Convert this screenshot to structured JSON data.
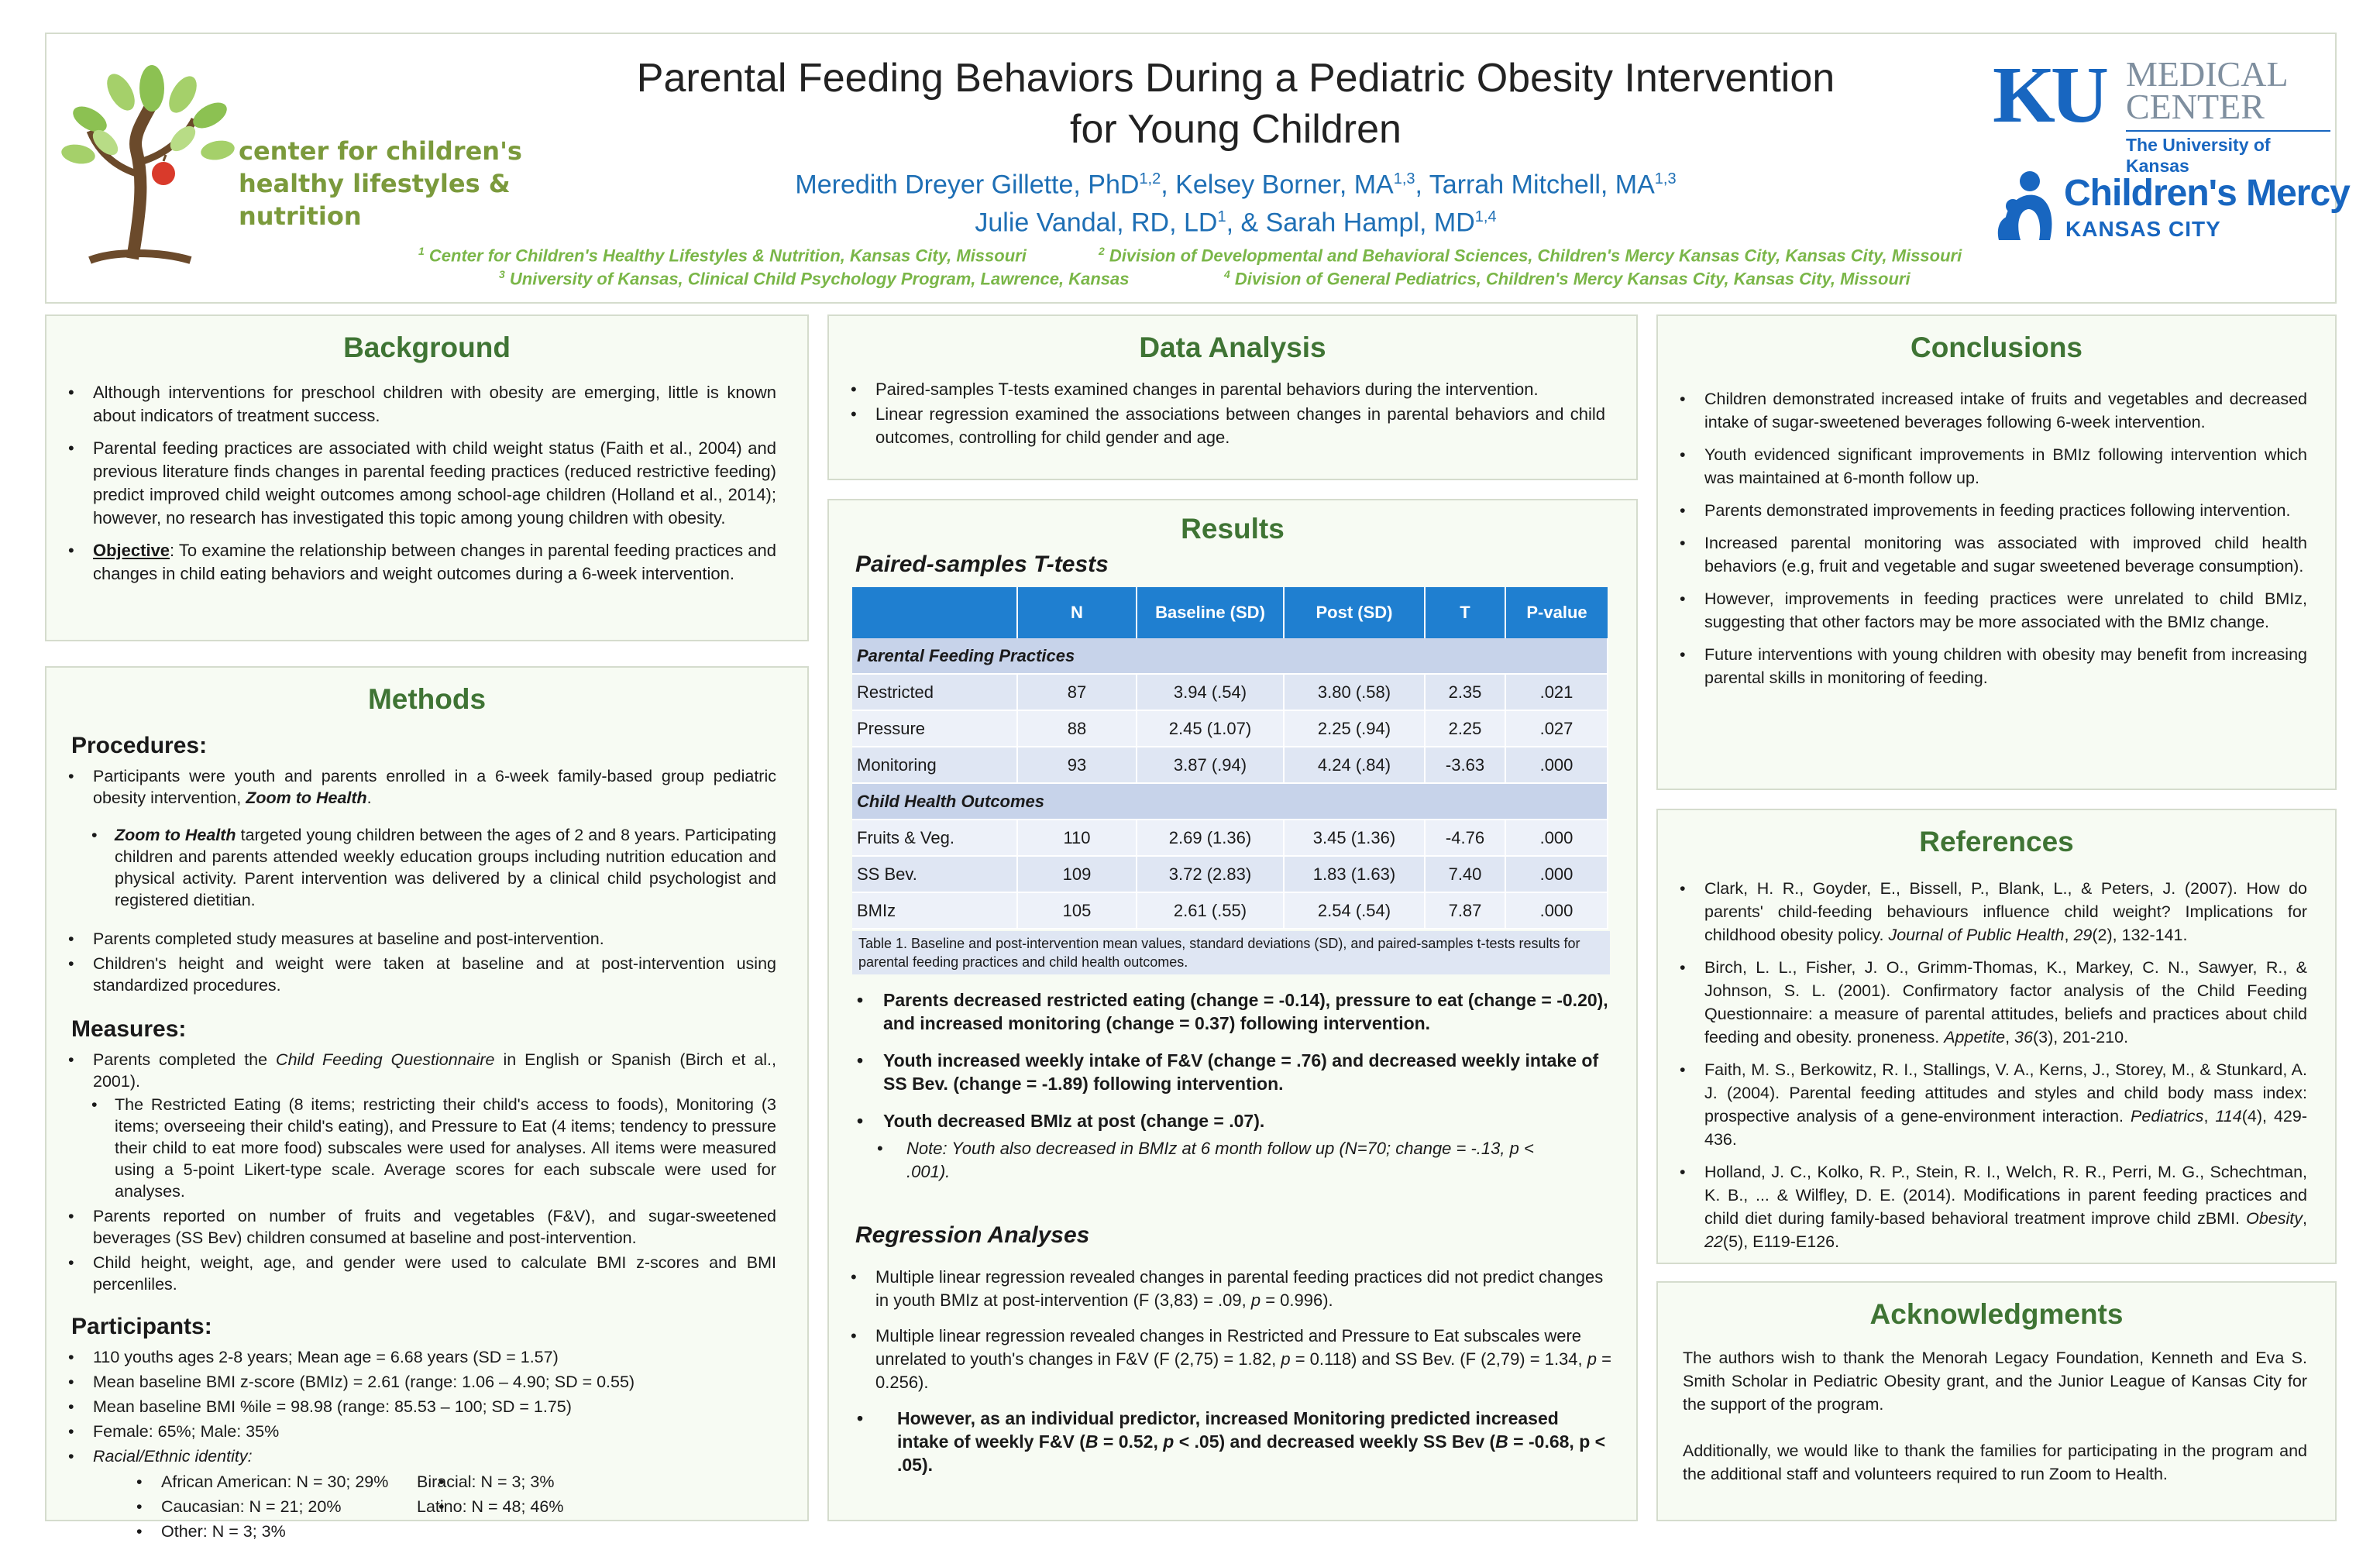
{
  "header": {
    "logo_text": [
      "center for children's",
      "healthy lifestyles &",
      "nutrition"
    ],
    "title_line1": "Parental Feeding Behaviors During a Pediatric Obesity Intervention",
    "title_line2": "for Young Children",
    "authors_line1": [
      {
        "name": "Meredith Dreyer Gillette, PhD",
        "sup": "1,2"
      },
      {
        "name": ", Kelsey Borner, MA",
        "sup": "1,3"
      },
      {
        "name": ", Tarrah Mitchell, MA",
        "sup": "1,3"
      }
    ],
    "authors_line2": [
      {
        "name": "Julie Vandal, RD, LD",
        "sup": "1"
      },
      {
        "name": ", & Sarah Hampl, MD",
        "sup": "1,4"
      }
    ],
    "affiliations": [
      {
        "num": "1",
        "text": "Center for Children's Healthy Lifestyles & Nutrition, Kansas City, Missouri"
      },
      {
        "num": "2",
        "text": "Division of Developmental and Behavioral Sciences, Children's Mercy Kansas City, Kansas City, Missouri"
      },
      {
        "num": "3",
        "text": "University of Kansas, Clinical Child Psychology Program, Lawrence, Kansas"
      },
      {
        "num": "4",
        "text": "Division of General Pediatrics, Children's Mercy Kansas City, Kansas City, Missouri"
      }
    ],
    "ku_logo": {
      "mark": "KU",
      "line1": "MEDICAL",
      "line2": "CENTER",
      "sub": "The University of Kansas"
    },
    "cm_logo": {
      "name": "Children's Mercy",
      "sub": "KANSAS CITY"
    }
  },
  "background": {
    "title": "Background",
    "items": [
      "Although interventions for preschool children with obesity are emerging, little is known about indicators of treatment success.",
      "Parental feeding practices are associated with child weight status (Faith et al., 2004) and previous literature finds changes in parental feeding practices (reduced restrictive feeding) predict improved child weight outcomes among school-age children (Holland et al., 2014); however, no research has investigated this topic among young children with obesity."
    ],
    "objective_label": "Objective",
    "objective_text": ": To examine the relationship between changes in parental feeding practices and changes in child eating behaviors and weight outcomes during a 6-week intervention."
  },
  "methods": {
    "title": "Methods",
    "procedures_heading": "Procedures",
    "procedures_1": "Participants were youth and parents enrolled in a 6-week family-based group pediatric obesity intervention, ",
    "procedures_1_em": "Zoom to Health",
    "zoom_em": "Zoom to Health",
    "zoom_text": " targeted young children between the ages of 2 and 8 years. Participating children and parents attended weekly education groups including nutrition education and physical activity. Parent intervention was delivered by a clinical child psychologist and registered dietitian.",
    "procedures_2": "Parents completed study measures at baseline and post-intervention.",
    "procedures_3": "Children's height and weight were taken at baseline and at post-intervention using standardized procedures.",
    "measures_heading": "Measures:",
    "measures_1a": "Parents completed the ",
    "measures_1_em": "Child Feeding Questionnaire",
    "measures_1b": " in English or Spanish (Birch et al., 2001).",
    "measures_sub": "The Restricted Eating (8 items; restricting their child's access to foods), Monitoring (3 items; overseeing their child's eating), and Pressure to Eat (4 items; tendency to pressure their child to eat more food) subscales were used for analyses. All items were measured using a 5-point Likert-type scale. Average scores for each subscale were used for analyses.",
    "measures_2": "Parents reported on number of fruits and vegetables (F&V), and sugar-sweetened beverages (SS Bev) children consumed at baseline and post-intervention.",
    "measures_3": "Child height, weight, age, and gender were used to calculate BMI z-scores and BMI percenliles.",
    "participants_heading": "Participants:",
    "participants": [
      "110 youths ages 2-8 years; Mean age = 6.68 years (SD = 1.57)",
      "Mean baseline BMI z-score (BMIz) = 2.61 (range: 1.06 – 4.90; SD = 0.55)",
      "Mean baseline BMI %ile = 98.98 (range: 85.53 – 100; SD = 1.75)",
      "Female: 65%; Male: 35%"
    ],
    "racial_label": "Racial/Ethnic identity:",
    "racial": [
      "African American: N = 30; 29%",
      "Biracial: N = 3; 3%",
      "Caucasian: N = 21; 20%",
      "Latino: N = 48; 46%",
      "Other: N = 3; 3%"
    ]
  },
  "data_analysis": {
    "title": "Data Analysis",
    "items": [
      "Paired-samples T-tests examined changes in parental behaviors during the intervention.",
      "Linear regression examined the associations between changes in parental behaviors and child outcomes, controlling for child gender and age."
    ]
  },
  "results": {
    "title": "Results",
    "ttests_heading": "Paired-samples T-tests",
    "table": {
      "headers": [
        "",
        "N",
        "Baseline (SD)",
        "Post (SD)",
        "T",
        "P-value"
      ],
      "section1": "Parental Feeding Practices",
      "rows1": [
        [
          "Restricted",
          "87",
          "3.94 (.54)",
          "3.80 (.58)",
          "2.35",
          ".021"
        ],
        [
          "Pressure",
          "88",
          "2.45 (1.07)",
          "2.25 (.94)",
          "2.25",
          ".027"
        ],
        [
          "Monitoring",
          "93",
          "3.87 (.94)",
          "4.24 (.84)",
          "-3.63",
          ".000"
        ]
      ],
      "section2": "Child Health Outcomes",
      "rows2": [
        [
          "Fruits & Veg.",
          "110",
          "2.69 (1.36)",
          "3.45 (1.36)",
          "-4.76",
          ".000"
        ],
        [
          "SS Bev.",
          "109",
          "3.72 (2.83)",
          "1.83 (1.63)",
          "7.40",
          ".000"
        ],
        [
          "BMIz",
          "105",
          "2.61 (.55)",
          "2.54 (.54)",
          "7.87",
          ".000"
        ]
      ],
      "caption": "Table 1. Baseline and post-intervention mean values, standard deviations (SD), and paired-samples t-tests results for parental feeding practices and child health outcomes."
    },
    "findings": [
      "Parents decreased restricted eating (change = -0.14), pressure to eat (change = -0.20), and increased monitoring (change = 0.37) following intervention.",
      "Youth increased weekly intake of F&V (change = .76) and decreased weekly intake of SS Bev. (change = -1.89) following intervention.",
      "Youth decreased BMIz at post (change = .07)."
    ],
    "note": "Note: Youth also decreased in BMIz at 6 month follow up (N=70; change = -.13, p < .001).",
    "regression_heading": "Regression Analyses",
    "regression_1a": "Multiple linear regression revealed changes in parental feeding practices did not predict changes in youth BMIz at post-intervention (F (3,83) = .09, ",
    "regression_1b": " = 0.996).",
    "regression_2a": "Multiple linear regression revealed changes in Restricted and Pressure to Eat subscales were unrelated to youth's changes in F&V (F (2,75) = 1.82, ",
    "regression_2b": " = 0.118) and SS Bev. (F (2,79) = 1.34, ",
    "regression_2c": " = 0.256).",
    "regression_3a": "However, as an individual predictor, increased Monitoring predicted increased intake of weekly F&V (",
    "regression_3b": " = 0.52, ",
    "regression_3c": " < .05) and decreased weekly SS Bev (",
    "regression_3d": " = -0.68, p < .05).",
    "p": "p",
    "B": "B"
  },
  "conclusions": {
    "title": "Conclusions",
    "items": [
      "Children demonstrated increased intake of fruits and vegetables and decreased intake of sugar-sweetened beverages following 6-week intervention.",
      "Youth evidenced significant improvements in BMIz following intervention which was maintained at 6-month follow up.",
      "Parents demonstrated improvements in feeding practices following intervention.",
      "Increased parental monitoring was associated with improved child health behaviors (e.g, fruit and vegetable and sugar sweetened beverage consumption).",
      "However, improvements in feeding practices were unrelated to child BMIz, suggesting that other factors may be more associated with the BMIz change.",
      "Future interventions with young children with obesity may benefit from increasing parental skills in monitoring of feeding."
    ]
  },
  "references": {
    "title": "References",
    "items": [
      {
        "a": "Clark, H. R., Goyder, E., Bissell, P., Blank, L., & Peters, J. (2007). How do parents' child-feeding behaviours influence child weight? Implications for childhood obesity policy. ",
        "j": "Journal of Public Health",
        "b": ", ",
        "v": "29",
        "c": "(2), 132-141."
      },
      {
        "a": "Birch, L. L., Fisher, J. O., Grimm-Thomas, K., Markey, C. N., Sawyer, R., & Johnson, S. L. (2001). Confirmatory factor analysis of the Child Feeding Questionnaire: a measure of parental attitudes, beliefs and practices about child feeding and obesity. proneness. ",
        "j": "Appetite",
        "b": ", ",
        "v": "36",
        "c": "(3), 201-210."
      },
      {
        "a": "Faith, M. S., Berkowitz, R. I., Stallings, V. A., Kerns, J., Storey, M., & Stunkard, A. J. (2004). Parental feeding attitudes and styles and child body mass index: prospective analysis of a gene-environment interaction. ",
        "j": "Pediatrics",
        "b": ", ",
        "v": "114",
        "c": "(4), 429-436."
      },
      {
        "a": "Holland, J. C., Kolko, R. P., Stein, R. I., Welch, R. R., Perri, M. G., Schechtman, K. B., ... & Wilfley, D. E. (2014). Modifications in parent feeding practices and child diet during family-based behavioral treatment improve child zBMI. ",
        "j": "Obesity",
        "b": ", ",
        "v": "22",
        "c": "(5), E119-E126."
      }
    ]
  },
  "acknowledgments": {
    "title": "Acknowledgments",
    "p1": "The authors wish to thank the Menorah Legacy Foundation, Kenneth and Eva S. Smith Scholar in Pediatric Obesity grant, and the Junior League of Kansas City for the support of the program.",
    "p2": "Additionally, we would like to thank the families for participating in the program and the additional staff and volunteers required to run Zoom to Health."
  }
}
